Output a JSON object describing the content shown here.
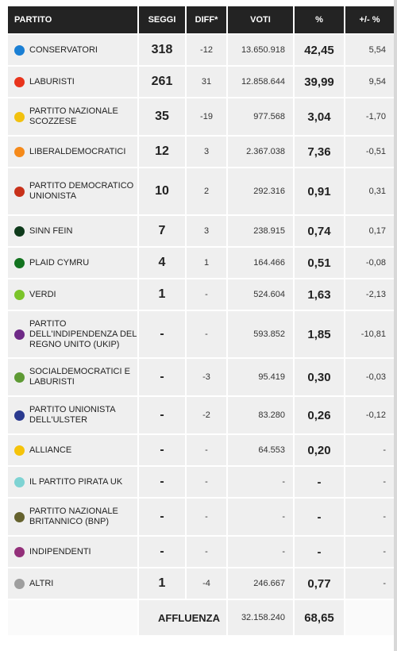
{
  "headers": {
    "party": "PARTITO",
    "seats": "SEGGI",
    "diff": "DIFF*",
    "votes": "VOTI",
    "pct": "%",
    "change": "+/- %"
  },
  "rows": [
    {
      "name": "CONSERVATORI",
      "color": "#1a7fd4",
      "seats": "318",
      "diff": "-12",
      "votes": "13.650.918",
      "pct": "42,45",
      "change": "5,54",
      "size": "short"
    },
    {
      "name": "LABURISTI",
      "color": "#e8341c",
      "seats": "261",
      "diff": "31",
      "votes": "12.858.644",
      "pct": "39,99",
      "change": "9,54",
      "size": "short"
    },
    {
      "name": "PARTITO NAZIONALE SCOZZESE",
      "color": "#f2c10f",
      "seats": "35",
      "diff": "-19",
      "votes": "977.568",
      "pct": "3,04",
      "change": "-1,70",
      "size": "two"
    },
    {
      "name": "LIBERALDEMOCRATICI",
      "color": "#f58a1a",
      "seats": "12",
      "diff": "3",
      "votes": "2.367.038",
      "pct": "7,36",
      "change": "-0,51",
      "size": "short"
    },
    {
      "name": "PARTITO DEMOCRATICO UNIONISTA",
      "color": "#c8311a",
      "seats": "10",
      "diff": "2",
      "votes": "292.316",
      "pct": "0,91",
      "change": "0,31",
      "size": "three"
    },
    {
      "name": "SINN FEIN",
      "color": "#0e3a1b",
      "seats": "7",
      "diff": "3",
      "votes": "238.915",
      "pct": "0,74",
      "change": "0,17",
      "size": "short"
    },
    {
      "name": "PLAID CYMRU",
      "color": "#12731f",
      "seats": "4",
      "diff": "1",
      "votes": "164.466",
      "pct": "0,51",
      "change": "-0,08",
      "size": "short"
    },
    {
      "name": "VERDI",
      "color": "#7bc42a",
      "seats": "1",
      "diff": "-",
      "votes": "524.604",
      "pct": "1,63",
      "change": "-2,13",
      "size": "short"
    },
    {
      "name": "PARTITO DELL'INDIPENDENZA DEL REGNO UNITO (UKIP)",
      "color": "#6e2a87",
      "seats": "-",
      "diff": "-",
      "votes": "593.852",
      "pct": "1,85",
      "change": "-10,81",
      "size": "three"
    },
    {
      "name": "SOCIALDEMOCRATICI E LABURISTI",
      "color": "#5e9a34",
      "seats": "-",
      "diff": "-3",
      "votes": "95.419",
      "pct": "0,30",
      "change": "-0,03",
      "size": "two"
    },
    {
      "name": "PARTITO UNIONISTA DELL'ULSTER",
      "color": "#2a3a8f",
      "seats": "-",
      "diff": "-2",
      "votes": "83.280",
      "pct": "0,26",
      "change": "-0,12",
      "size": "two"
    },
    {
      "name": "ALLIANCE",
      "color": "#f5c30a",
      "seats": "-",
      "diff": "-",
      "votes": "64.553",
      "pct": "0,20",
      "change": "-",
      "size": "short"
    },
    {
      "name": "IL PARTITO PIRATA UK",
      "color": "#7ed3d3",
      "seats": "-",
      "diff": "-",
      "votes": "-",
      "pct": "-",
      "change": "-",
      "size": "short"
    },
    {
      "name": "PARTITO NAZIONALE BRITANNICO (BNP)",
      "color": "#65622e",
      "seats": "-",
      "diff": "-",
      "votes": "-",
      "pct": "-",
      "change": "-",
      "size": "two"
    },
    {
      "name": "INDIPENDENTI",
      "color": "#93307a",
      "seats": "-",
      "diff": "-",
      "votes": "-",
      "pct": "-",
      "change": "-",
      "size": "short"
    },
    {
      "name": "ALTRI",
      "color": "#9e9e9e",
      "seats": "1",
      "diff": "-4",
      "votes": "246.667",
      "pct": "0,77",
      "change": "-",
      "size": "short"
    }
  ],
  "footer": {
    "label": "AFFLUENZA",
    "votes": "32.158.240",
    "pct": "68,65"
  }
}
